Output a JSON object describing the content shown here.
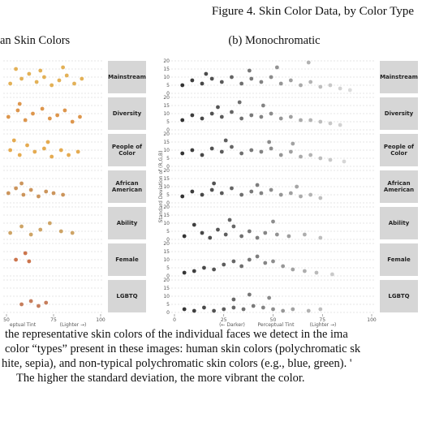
{
  "figure_title": "Figure 4. Skin Color Data, by Color Type",
  "panels": [
    {
      "title": "an Skin Colors",
      "xlim": [
        50,
        100
      ],
      "ylim": [
        0,
        20
      ],
      "xticks": [
        50,
        75,
        100
      ],
      "yticks": [
        0,
        5,
        10,
        15,
        20
      ],
      "ytick_labels": false,
      "x_label": [
        "eptual Tint",
        "(Lighter →)"
      ],
      "facets": [
        {
          "label": "Mainstream",
          "color": "#e0a845",
          "points": [
            [
              52,
              6
            ],
            [
              58,
              9
            ],
            [
              62,
              12
            ],
            [
              66,
              7
            ],
            [
              70,
              10
            ],
            [
              74,
              5
            ],
            [
              78,
              8
            ],
            [
              82,
              11
            ],
            [
              86,
              6
            ],
            [
              90,
              9
            ],
            [
              55,
              15
            ],
            [
              68,
              14
            ],
            [
              80,
              16
            ]
          ]
        },
        {
          "label": "Diversity",
          "color": "#d98b3a",
          "points": [
            [
              51,
              8
            ],
            [
              56,
              12
            ],
            [
              60,
              6
            ],
            [
              64,
              10
            ],
            [
              69,
              13
            ],
            [
              73,
              7
            ],
            [
              77,
              9
            ],
            [
              81,
              12
            ],
            [
              85,
              5
            ],
            [
              89,
              8
            ],
            [
              57,
              16
            ]
          ]
        },
        {
          "label": "People of Color",
          "color": "#e2a23e",
          "points": [
            [
              52,
              10
            ],
            [
              57,
              7
            ],
            [
              61,
              13
            ],
            [
              65,
              9
            ],
            [
              70,
              11
            ],
            [
              74,
              6
            ],
            [
              79,
              10
            ],
            [
              83,
              7
            ],
            [
              88,
              9
            ],
            [
              54,
              16
            ],
            [
              72,
              15
            ]
          ]
        },
        {
          "label": "African American",
          "color": "#c78a4a",
          "points": [
            [
              51,
              6
            ],
            [
              55,
              9
            ],
            [
              59,
              5
            ],
            [
              63,
              8
            ],
            [
              67,
              4
            ],
            [
              71,
              7
            ],
            [
              75,
              6
            ],
            [
              80,
              5
            ],
            [
              58,
              12
            ]
          ]
        },
        {
          "label": "Ability",
          "color": "#c99a55",
          "points": [
            [
              52,
              4
            ],
            [
              58,
              8
            ],
            [
              63,
              3
            ],
            [
              68,
              6
            ],
            [
              73,
              10
            ],
            [
              79,
              5
            ],
            [
              85,
              4
            ]
          ]
        },
        {
          "label": "Female",
          "color": "#c7663a",
          "points": [
            [
              55,
              10
            ],
            [
              60,
              14
            ],
            [
              62,
              9
            ]
          ]
        },
        {
          "label": "LGBTQ",
          "color": "#c0704a",
          "points": [
            [
              58,
              5
            ],
            [
              63,
              7
            ],
            [
              67,
              4
            ],
            [
              71,
              6
            ]
          ]
        }
      ]
    },
    {
      "title": "(b) Monochromatic",
      "xlim": [
        0,
        100
      ],
      "ylim": [
        0,
        20
      ],
      "xticks": [
        0,
        25,
        50,
        75,
        100
      ],
      "yticks": [
        0,
        5,
        10,
        15,
        20
      ],
      "ytick_labels": true,
      "y_label": "Standard Deviation of (R,G,B)",
      "x_label": [
        "(← Darker)",
        "Perceptual Tint",
        "(Lighter →)"
      ],
      "facets": [
        {
          "label": "Mainstream",
          "points": [
            [
              4,
              5
            ],
            [
              9,
              8
            ],
            [
              14,
              6
            ],
            [
              19,
              9
            ],
            [
              24,
              7
            ],
            [
              29,
              10
            ],
            [
              34,
              6
            ],
            [
              39,
              9
            ],
            [
              44,
              7
            ],
            [
              49,
              10
            ],
            [
              54,
              6
            ],
            [
              59,
              8
            ],
            [
              64,
              5
            ],
            [
              69,
              7
            ],
            [
              74,
              4
            ],
            [
              79,
              5
            ],
            [
              84,
              3
            ],
            [
              89,
              2
            ],
            [
              16,
              12
            ],
            [
              38,
              14
            ],
            [
              52,
              16
            ],
            [
              68,
              19
            ]
          ]
        },
        {
          "label": "Diversity",
          "points": [
            [
              4,
              6
            ],
            [
              9,
              9
            ],
            [
              14,
              7
            ],
            [
              19,
              10
            ],
            [
              24,
              8
            ],
            [
              29,
              11
            ],
            [
              34,
              7
            ],
            [
              39,
              9
            ],
            [
              44,
              8
            ],
            [
              49,
              10
            ],
            [
              54,
              7
            ],
            [
              59,
              8
            ],
            [
              64,
              6
            ],
            [
              69,
              6
            ],
            [
              74,
              5
            ],
            [
              79,
              4
            ],
            [
              84,
              3
            ],
            [
              22,
              14
            ],
            [
              45,
              15
            ],
            [
              33,
              17
            ]
          ]
        },
        {
          "label": "People of Color",
          "points": [
            [
              4,
              8
            ],
            [
              9,
              10
            ],
            [
              14,
              7
            ],
            [
              19,
              11
            ],
            [
              24,
              9
            ],
            [
              29,
              12
            ],
            [
              34,
              8
            ],
            [
              39,
              10
            ],
            [
              44,
              9
            ],
            [
              49,
              11
            ],
            [
              54,
              7
            ],
            [
              59,
              9
            ],
            [
              64,
              6
            ],
            [
              69,
              7
            ],
            [
              74,
              5
            ],
            [
              79,
              4
            ],
            [
              86,
              3
            ],
            [
              26,
              16
            ],
            [
              48,
              15
            ],
            [
              60,
              14
            ]
          ]
        },
        {
          "label": "African American",
          "points": [
            [
              4,
              4
            ],
            [
              9,
              7
            ],
            [
              14,
              5
            ],
            [
              19,
              8
            ],
            [
              24,
              6
            ],
            [
              29,
              9
            ],
            [
              34,
              5
            ],
            [
              39,
              7
            ],
            [
              44,
              6
            ],
            [
              49,
              8
            ],
            [
              54,
              5
            ],
            [
              59,
              6
            ],
            [
              64,
              4
            ],
            [
              69,
              5
            ],
            [
              74,
              3
            ],
            [
              20,
              12
            ],
            [
              42,
              11
            ],
            [
              62,
              10
            ]
          ]
        },
        {
          "label": "Ability",
          "points": [
            [
              5,
              2
            ],
            [
              10,
              9
            ],
            [
              14,
              4
            ],
            [
              18,
              1
            ],
            [
              22,
              6
            ],
            [
              26,
              3
            ],
            [
              30,
              8
            ],
            [
              34,
              2
            ],
            [
              38,
              5
            ],
            [
              42,
              1
            ],
            [
              46,
              4
            ],
            [
              52,
              3
            ],
            [
              58,
              2
            ],
            [
              66,
              3
            ],
            [
              74,
              1
            ],
            [
              28,
              12
            ],
            [
              50,
              11
            ]
          ]
        },
        {
          "label": "Female",
          "points": [
            [
              5,
              2
            ],
            [
              10,
              3
            ],
            [
              15,
              5
            ],
            [
              20,
              4
            ],
            [
              25,
              7
            ],
            [
              30,
              9
            ],
            [
              34,
              6
            ],
            [
              38,
              10
            ],
            [
              42,
              12
            ],
            [
              46,
              8
            ],
            [
              50,
              9
            ],
            [
              55,
              6
            ],
            [
              60,
              4
            ],
            [
              66,
              3
            ],
            [
              72,
              2
            ],
            [
              80,
              1
            ]
          ]
        },
        {
          "label": "LGBTQ",
          "points": [
            [
              5,
              2
            ],
            [
              10,
              1
            ],
            [
              15,
              3
            ],
            [
              20,
              1
            ],
            [
              25,
              2
            ],
            [
              30,
              3
            ],
            [
              35,
              2
            ],
            [
              40,
              4
            ],
            [
              45,
              3
            ],
            [
              50,
              2
            ],
            [
              55,
              1
            ],
            [
              60,
              2
            ],
            [
              68,
              1
            ],
            [
              74,
              2
            ],
            [
              30,
              8
            ],
            [
              48,
              9
            ],
            [
              38,
              11
            ]
          ]
        }
      ]
    }
  ],
  "caption": [
    "the representative skin colors of the individual faces we detect in the ima",
    "color “types” present in these images: human skin colors (polychromatic sk",
    "hite, sepia), and non-typical polychromatic skin colors (e.g., blue, green). '",
    "The higher the standard deviation, the more vibrant the color."
  ]
}
